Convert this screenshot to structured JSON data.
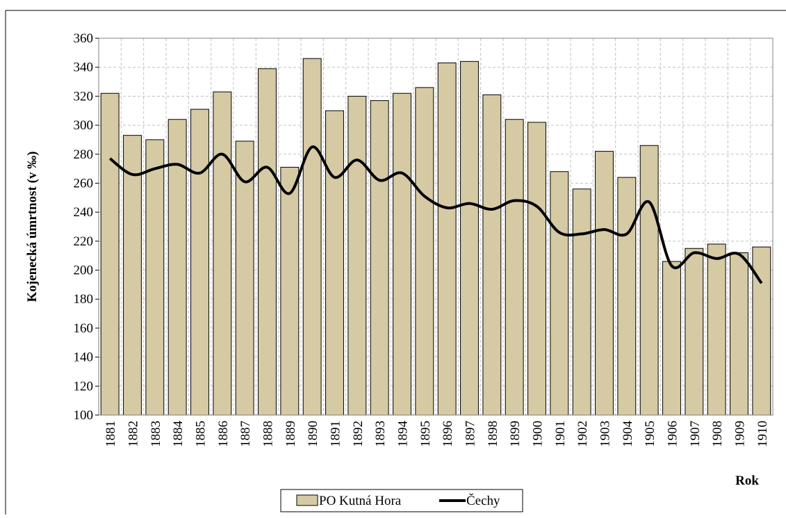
{
  "chart_data": {
    "type": "bar",
    "y_label": "Kojenecká úmrtnost (v ‰)",
    "x_label": "Rok",
    "categories": [
      "1881",
      "1882",
      "1883",
      "1884",
      "1885",
      "1886",
      "1887",
      "1888",
      "1889",
      "1890",
      "1891",
      "1892",
      "1893",
      "1894",
      "1895",
      "1896",
      "1897",
      "1898",
      "1899",
      "1900",
      "1901",
      "1902",
      "1903",
      "1904",
      "1905",
      "1906",
      "1907",
      "1908",
      "1909",
      "1910"
    ],
    "series": [
      {
        "name": "PO Kutná Hora",
        "type": "bar",
        "color": "#d5caa3",
        "values": [
          322,
          293,
          290,
          304,
          311,
          323,
          289,
          339,
          271,
          346,
          310,
          320,
          317,
          322,
          326,
          343,
          344,
          321,
          304,
          302,
          268,
          256,
          282,
          264,
          286,
          206,
          215,
          218,
          212,
          216
        ]
      },
      {
        "name": "Čechy",
        "type": "line",
        "color": "#000000",
        "values": [
          277,
          266,
          270,
          273,
          267,
          280,
          261,
          271,
          253,
          285,
          264,
          276,
          262,
          267,
          251,
          243,
          246,
          242,
          248,
          244,
          226,
          225,
          228,
          225,
          247,
          203,
          212,
          208,
          211,
          191
        ]
      }
    ],
    "ylim": [
      100,
      360
    ],
    "yticks": [
      100,
      120,
      140,
      160,
      180,
      200,
      220,
      240,
      260,
      280,
      300,
      320,
      340,
      360
    ],
    "grid": true
  }
}
